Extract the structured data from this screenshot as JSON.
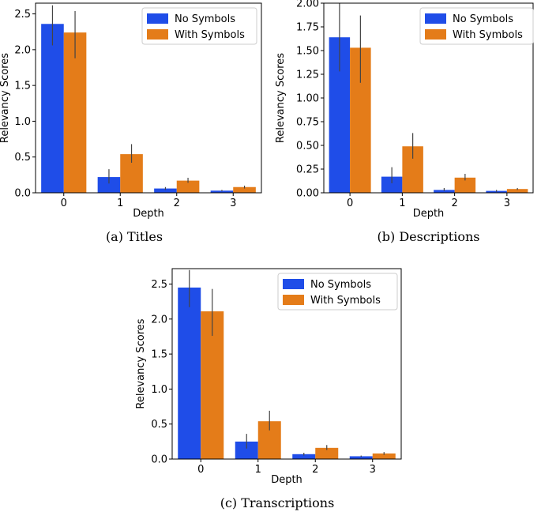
{
  "colors": {
    "no_symbols": "#1f4de8",
    "with_symbols": "#e47c19",
    "error_bar": "#444444"
  },
  "legend": [
    "No Symbols",
    "With Symbols"
  ],
  "chart_data": [
    {
      "type": "bar",
      "caption": "(a) Titles",
      "xlabel": "Depth",
      "ylabel": "Relevancy Scores",
      "categories": [
        "0",
        "1",
        "2",
        "3"
      ],
      "ylim": [
        0,
        2.65
      ],
      "yticks": [
        "0.0",
        "0.5",
        "1.0",
        "1.5",
        "2.0",
        "2.5"
      ],
      "ytick_values": [
        0,
        0.5,
        1.0,
        1.5,
        2.0,
        2.5
      ],
      "series": [
        {
          "name": "No Symbols",
          "values": [
            2.36,
            0.22,
            0.06,
            0.03
          ],
          "err_low": [
            2.06,
            0.13,
            0.04,
            0.02
          ],
          "err_high": [
            2.62,
            0.33,
            0.08,
            0.04
          ]
        },
        {
          "name": "With Symbols",
          "values": [
            2.24,
            0.54,
            0.17,
            0.08
          ],
          "err_low": [
            1.88,
            0.42,
            0.14,
            0.06
          ],
          "err_high": [
            2.54,
            0.68,
            0.21,
            0.1
          ]
        }
      ]
    },
    {
      "type": "bar",
      "caption": "(b) Descriptions",
      "xlabel": "Depth",
      "ylabel": "Relevancy Scores",
      "categories": [
        "0",
        "1",
        "2",
        "3"
      ],
      "ylim": [
        0,
        2.0
      ],
      "yticks": [
        "0.00",
        "0.25",
        "0.50",
        "0.75",
        "1.00",
        "1.25",
        "1.50",
        "1.75",
        "2.00"
      ],
      "ytick_values": [
        0,
        0.25,
        0.5,
        0.75,
        1.0,
        1.25,
        1.5,
        1.75,
        2.0
      ],
      "series": [
        {
          "name": "No Symbols",
          "values": [
            1.64,
            0.17,
            0.03,
            0.02
          ],
          "err_low": [
            1.28,
            0.1,
            0.02,
            0.01
          ],
          "err_high": [
            2.0,
            0.27,
            0.05,
            0.03
          ]
        },
        {
          "name": "With Symbols",
          "values": [
            1.53,
            0.49,
            0.16,
            0.04
          ],
          "err_low": [
            1.16,
            0.36,
            0.13,
            0.03
          ],
          "err_high": [
            1.87,
            0.63,
            0.2,
            0.05
          ]
        }
      ]
    },
    {
      "type": "bar",
      "caption": "(c) Transcriptions",
      "xlabel": "Depth",
      "ylabel": "Relevancy Scores",
      "categories": [
        "0",
        "1",
        "2",
        "3"
      ],
      "ylim": [
        0,
        2.72
      ],
      "yticks": [
        "0.0",
        "0.5",
        "1.0",
        "1.5",
        "2.0",
        "2.5"
      ],
      "ytick_values": [
        0,
        0.5,
        1.0,
        1.5,
        2.0,
        2.5
      ],
      "series": [
        {
          "name": "No Symbols",
          "values": [
            2.45,
            0.25,
            0.07,
            0.04
          ],
          "err_low": [
            2.17,
            0.15,
            0.05,
            0.03
          ],
          "err_high": [
            2.7,
            0.36,
            0.09,
            0.05
          ]
        },
        {
          "name": "With Symbols",
          "values": [
            2.11,
            0.54,
            0.16,
            0.08
          ],
          "err_low": [
            1.76,
            0.41,
            0.13,
            0.06
          ],
          "err_high": [
            2.43,
            0.69,
            0.2,
            0.1
          ]
        }
      ]
    }
  ]
}
